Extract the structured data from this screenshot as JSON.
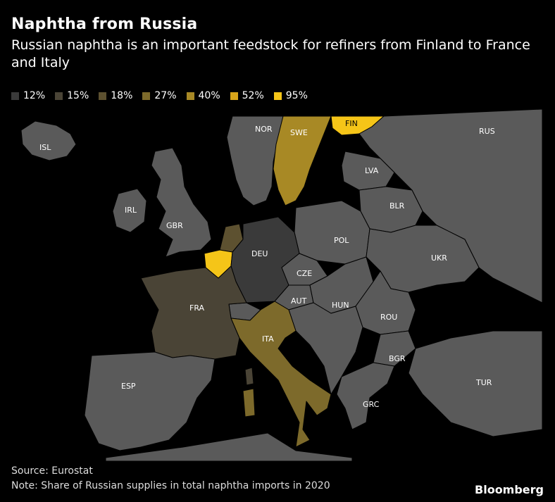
{
  "title": "Naphtha from Russia",
  "subtitle": "Russian naphtha is an important feedstock for refiners from Finland to France and Italy",
  "legend": [
    {
      "label": "12%",
      "color": "#3a3a3a"
    },
    {
      "label": "15%",
      "color": "#4a4436"
    },
    {
      "label": "18%",
      "color": "#5d5130"
    },
    {
      "label": "27%",
      "color": "#7d6a2b"
    },
    {
      "label": "40%",
      "color": "#a88925"
    },
    {
      "label": "52%",
      "color": "#d9a51a"
    },
    {
      "label": "95%",
      "color": "#f5c518"
    }
  ],
  "countries": {
    "ISL": "ISL",
    "NOR": "NOR",
    "SWE": "SWE",
    "FIN": "FIN",
    "RUS": "RUS",
    "LVA": "LVA",
    "BLR": "BLR",
    "IRL": "IRL",
    "GBR": "GBR",
    "POL": "POL",
    "DEU": "DEU",
    "UKR": "UKR",
    "CZE": "CZE",
    "FRA": "FRA",
    "AUT": "AUT",
    "HUN": "HUN",
    "ROU": "ROU",
    "ITA": "ITA",
    "BGR": "BGR",
    "ESP": "ESP",
    "TUR": "TUR",
    "GRC": "GRC"
  },
  "source": "Source: Eurostat",
  "note": "Note: Share of Russian supplies in total naphtha imports in 2020",
  "brand": "Bloomberg"
}
